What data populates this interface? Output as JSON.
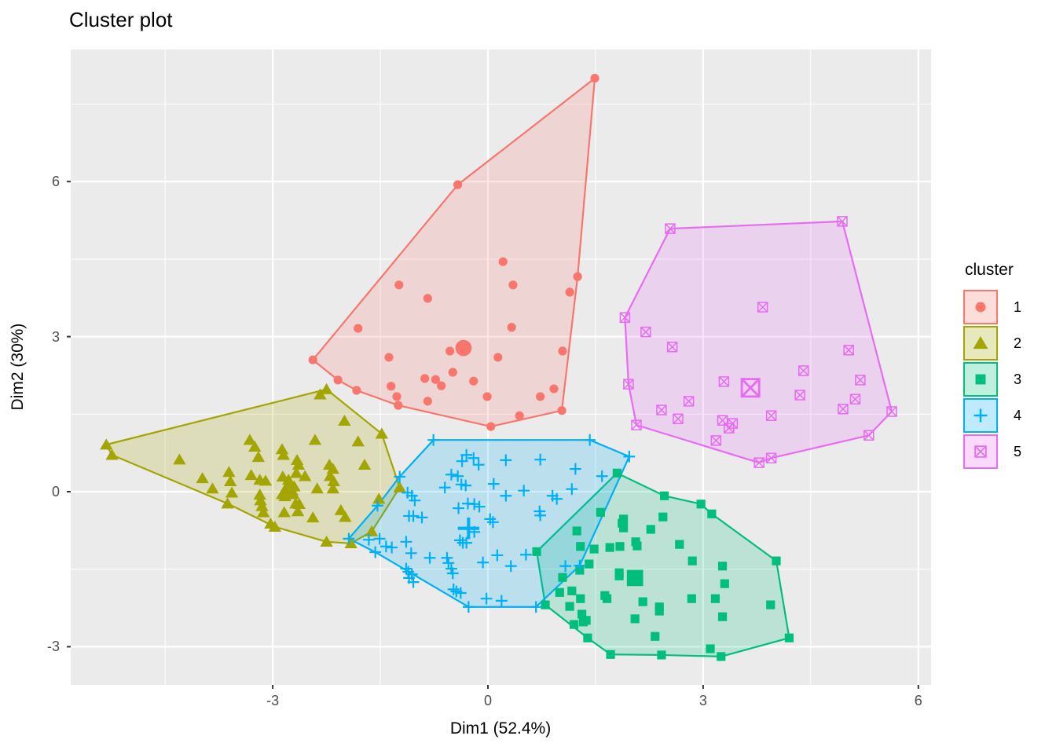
{
  "legend": {
    "title": "cluster"
  },
  "chart_data": {
    "type": "scatter",
    "title": "Cluster plot",
    "xlabel": "Dim1 (52.4%)",
    "ylabel": "Dim2 (30%)",
    "x_ticks": [
      "-3",
      "0",
      "3",
      "6"
    ],
    "x_tick_values": [
      -3,
      0,
      3,
      6
    ],
    "y_ticks": [
      "-3",
      "0",
      "3",
      "6"
    ],
    "y_tick_values": [
      -3,
      0,
      3,
      6
    ],
    "x_minor": [
      -4.5,
      -1.5,
      1.5,
      4.5
    ],
    "y_minor": [
      -1.5,
      1.5,
      4.5,
      7.5
    ],
    "xlim": [
      -5.82,
      6.18
    ],
    "ylim": [
      -3.74,
      8.56
    ],
    "panel_bg": "#EBEBEB",
    "grid_color": "#FFFFFF",
    "tick_color": "#333333",
    "legend_position": "right",
    "series": [
      {
        "name": "1",
        "shape": "circle",
        "color": "#F8766D",
        "center": [
          -0.34,
          2.78
        ],
        "hull": [
          [
            1.49,
            8.0
          ],
          [
            -0.42,
            5.94
          ],
          [
            -2.44,
            2.55
          ],
          [
            -2.09,
            2.16
          ],
          [
            -1.83,
            1.96
          ],
          [
            -1.25,
            1.67
          ],
          [
            0.04,
            1.26
          ],
          [
            1.03,
            1.57
          ],
          [
            1.25,
            4.16
          ]
        ],
        "points": [
          [
            1.49,
            8.0
          ],
          [
            -0.42,
            5.94
          ],
          [
            1.25,
            4.16
          ],
          [
            0.21,
            4.45
          ],
          [
            0.35,
            4.0
          ],
          [
            -1.24,
            4.0
          ],
          [
            -0.84,
            3.74
          ],
          [
            1.14,
            3.86
          ],
          [
            -1.81,
            3.16
          ],
          [
            0.33,
            3.18
          ],
          [
            -0.53,
            2.72
          ],
          [
            -1.38,
            2.6
          ],
          [
            0.14,
            2.6
          ],
          [
            1.04,
            2.72
          ],
          [
            -0.49,
            2.31
          ],
          [
            -0.88,
            2.19
          ],
          [
            -0.73,
            2.17
          ],
          [
            -0.65,
            2.05
          ],
          [
            -0.2,
            2.14
          ],
          [
            -1.35,
            2.04
          ],
          [
            -1.27,
            1.84
          ],
          [
            -0.84,
            1.75
          ],
          [
            -0.01,
            1.84
          ],
          [
            0.92,
            1.99
          ],
          [
            0.73,
            1.84
          ],
          [
            0.44,
            1.47
          ],
          [
            -2.44,
            2.55
          ],
          [
            -2.09,
            2.16
          ],
          [
            -1.83,
            1.96
          ],
          [
            -1.25,
            1.67
          ],
          [
            0.04,
            1.26
          ],
          [
            1.03,
            1.57
          ]
        ]
      },
      {
        "name": "2",
        "shape": "triangle",
        "color": "#A3A500",
        "center": [
          -2.79,
          0.03
        ],
        "hull": [
          [
            -5.32,
            0.91
          ],
          [
            -2.25,
            1.98
          ],
          [
            -1.48,
            1.12
          ],
          [
            -1.23,
            0.08
          ],
          [
            -1.62,
            -0.77
          ],
          [
            -1.91,
            -1.0
          ],
          [
            -2.25,
            -0.97
          ],
          [
            -2.97,
            -0.68
          ],
          [
            -3.63,
            -0.23
          ],
          [
            -5.24,
            0.71
          ]
        ],
        "points": [
          [
            -5.32,
            0.91
          ],
          [
            -5.24,
            0.71
          ],
          [
            -2.25,
            1.98
          ],
          [
            -2.34,
            1.88
          ],
          [
            -2.0,
            1.37
          ],
          [
            -1.48,
            1.12
          ],
          [
            -4.3,
            0.62
          ],
          [
            -3.98,
            0.26
          ],
          [
            -3.84,
            0.06
          ],
          [
            -3.61,
            0.38
          ],
          [
            -3.59,
            0.2
          ],
          [
            -3.57,
            -0.02
          ],
          [
            -3.63,
            -0.23
          ],
          [
            -3.32,
            1.0
          ],
          [
            -3.25,
            0.87
          ],
          [
            -3.3,
            0.32
          ],
          [
            -3.2,
            0.67
          ],
          [
            -3.18,
            0.23
          ],
          [
            -3.1,
            0.21
          ],
          [
            -3.18,
            -0.06
          ],
          [
            -3.17,
            -0.17
          ],
          [
            -3.15,
            -0.28
          ],
          [
            -3.13,
            -0.4
          ],
          [
            -3.03,
            -0.62
          ],
          [
            -2.87,
            0.82
          ],
          [
            -2.85,
            0.71
          ],
          [
            -2.86,
            0.29
          ],
          [
            -2.83,
            -0.09
          ],
          [
            -2.84,
            -0.4
          ],
          [
            -2.78,
            0.23
          ],
          [
            -2.75,
            0.15
          ],
          [
            -2.73,
            0.02
          ],
          [
            -2.7,
            0.1
          ],
          [
            -2.66,
            0.61
          ],
          [
            -2.64,
            0.52
          ],
          [
            -2.67,
            0.36
          ],
          [
            -2.68,
            -0.23
          ],
          [
            -2.63,
            -0.24
          ],
          [
            -2.65,
            -0.38
          ],
          [
            -2.55,
            0.3
          ],
          [
            -2.44,
            -0.5
          ],
          [
            -2.41,
            1.0
          ],
          [
            -2.38,
            0.06
          ],
          [
            -2.21,
            0.52
          ],
          [
            -2.16,
            0.44
          ],
          [
            -2.2,
            0.3
          ],
          [
            -2.15,
            0.2
          ],
          [
            -2.16,
            0.06
          ],
          [
            -2.05,
            -0.36
          ],
          [
            -1.99,
            -0.49
          ],
          [
            -1.81,
            0.97
          ],
          [
            -1.72,
            0.52
          ],
          [
            -1.52,
            -0.14
          ],
          [
            -1.23,
            0.08
          ],
          [
            -1.62,
            -0.77
          ],
          [
            -1.91,
            -1.0
          ],
          [
            -2.25,
            -0.97
          ],
          [
            -2.97,
            -0.68
          ]
        ]
      },
      {
        "name": "3",
        "shape": "square",
        "color": "#00BF7D",
        "center": [
          2.05,
          -1.67
        ],
        "hull": [
          [
            1.8,
            0.36
          ],
          [
            2.46,
            -0.08
          ],
          [
            2.97,
            -0.24
          ],
          [
            3.12,
            -0.43
          ],
          [
            4.02,
            -1.34
          ],
          [
            4.2,
            -2.83
          ],
          [
            3.25,
            -3.19
          ],
          [
            2.42,
            -3.16
          ],
          [
            1.71,
            -3.15
          ],
          [
            1.39,
            -2.83
          ],
          [
            0.8,
            -2.19
          ],
          [
            0.68,
            -1.16
          ]
        ],
        "points": [
          [
            1.8,
            0.36
          ],
          [
            2.46,
            -0.08
          ],
          [
            2.97,
            -0.24
          ],
          [
            3.12,
            -0.43
          ],
          [
            4.02,
            -1.34
          ],
          [
            4.2,
            -2.83
          ],
          [
            3.25,
            -3.19
          ],
          [
            2.42,
            -3.16
          ],
          [
            1.71,
            -3.15
          ],
          [
            1.39,
            -2.83
          ],
          [
            0.8,
            -2.19
          ],
          [
            0.68,
            -1.16
          ],
          [
            1.57,
            -0.4
          ],
          [
            1.89,
            -0.53
          ],
          [
            1.87,
            -0.61
          ],
          [
            1.89,
            -0.7
          ],
          [
            2.44,
            -0.49
          ],
          [
            2.27,
            -0.73
          ],
          [
            2.67,
            -1.02
          ],
          [
            1.24,
            -0.76
          ],
          [
            1.29,
            -1.06
          ],
          [
            1.48,
            -1.11
          ],
          [
            1.7,
            -1.08
          ],
          [
            1.84,
            -1.06
          ],
          [
            2.06,
            -0.97
          ],
          [
            2.08,
            -1.05
          ],
          [
            2.85,
            -1.34
          ],
          [
            3.27,
            -1.44
          ],
          [
            1.83,
            -1.57
          ],
          [
            1.83,
            -1.63
          ],
          [
            1.41,
            -1.4
          ],
          [
            1.28,
            -1.52
          ],
          [
            1.04,
            -1.66
          ],
          [
            1.0,
            -1.95
          ],
          [
            1.17,
            -1.92
          ],
          [
            1.29,
            -2.07
          ],
          [
            1.14,
            -2.22
          ],
          [
            1.31,
            -2.37
          ],
          [
            1.37,
            -2.49
          ],
          [
            1.33,
            -2.52
          ],
          [
            1.2,
            -2.57
          ],
          [
            1.63,
            -2.01
          ],
          [
            1.66,
            -2.07
          ],
          [
            2.16,
            -2.13
          ],
          [
            2.39,
            -2.23
          ],
          [
            2.39,
            -2.31
          ],
          [
            2.05,
            -2.46
          ],
          [
            2.84,
            -2.07
          ],
          [
            3.17,
            -2.07
          ],
          [
            3.27,
            -2.42
          ],
          [
            3.94,
            -2.19
          ],
          [
            3.3,
            -1.78
          ],
          [
            2.33,
            -2.8
          ],
          [
            3.1,
            -3.04
          ]
        ]
      },
      {
        "name": "4",
        "shape": "plus",
        "color": "#00B0F6",
        "center": [
          -0.27,
          -0.71
        ],
        "hull": [
          [
            -0.76,
            1.0
          ],
          [
            1.42,
            1.0
          ],
          [
            1.97,
            0.68
          ],
          [
            1.28,
            -1.43
          ],
          [
            0.67,
            -2.23
          ],
          [
            -0.27,
            -2.23
          ],
          [
            -1.57,
            -1.17
          ],
          [
            -1.94,
            -0.91
          ],
          [
            -1.54,
            -0.27
          ],
          [
            -1.23,
            0.29
          ]
        ],
        "points": [
          [
            -0.76,
            1.0
          ],
          [
            1.42,
            1.0
          ],
          [
            1.97,
            0.68
          ],
          [
            1.28,
            -1.43
          ],
          [
            0.67,
            -2.23
          ],
          [
            -0.27,
            -2.23
          ],
          [
            -1.57,
            -1.17
          ],
          [
            -1.94,
            -0.91
          ],
          [
            -1.54,
            -0.27
          ],
          [
            -1.23,
            0.29
          ],
          [
            -0.3,
            0.71
          ],
          [
            -0.2,
            0.65
          ],
          [
            -0.36,
            0.59
          ],
          [
            -0.13,
            0.52
          ],
          [
            0.25,
            0.61
          ],
          [
            0.73,
            0.62
          ],
          [
            1.22,
            0.44
          ],
          [
            1.59,
            0.3
          ],
          [
            -0.51,
            0.33
          ],
          [
            -0.42,
            0.3
          ],
          [
            -0.37,
            0.14
          ],
          [
            -0.31,
            0.12
          ],
          [
            -0.6,
            0.08
          ],
          [
            0.08,
            0.15
          ],
          [
            0.25,
            -0.08
          ],
          [
            0.5,
            0.02
          ],
          [
            1.17,
            0.05
          ],
          [
            -1.12,
            -0.02
          ],
          [
            -1.06,
            -0.08
          ],
          [
            -1.02,
            -0.17
          ],
          [
            0.9,
            -0.08
          ],
          [
            0.96,
            -0.14
          ],
          [
            -0.28,
            -0.23
          ],
          [
            -0.19,
            -0.24
          ],
          [
            -0.12,
            -0.29
          ],
          [
            -0.41,
            -0.32
          ],
          [
            0.72,
            -0.38
          ],
          [
            0.73,
            -0.46
          ],
          [
            -1.1,
            -0.47
          ],
          [
            -1.04,
            -0.47
          ],
          [
            -0.92,
            -0.5
          ],
          [
            0.03,
            -0.53
          ],
          [
            0.07,
            -0.59
          ],
          [
            -0.19,
            -0.78
          ],
          [
            -0.39,
            -0.94
          ],
          [
            -0.35,
            -0.99
          ],
          [
            -0.3,
            -0.99
          ],
          [
            -1.51,
            -0.91
          ],
          [
            -1.66,
            -0.93
          ],
          [
            -1.42,
            -1.06
          ],
          [
            -1.34,
            -1.08
          ],
          [
            -1.14,
            -0.97
          ],
          [
            -1.07,
            -1.19
          ],
          [
            -0.81,
            -1.28
          ],
          [
            -0.57,
            -1.28
          ],
          [
            0.13,
            -1.23
          ],
          [
            0.53,
            -1.22
          ],
          [
            0.32,
            -1.44
          ],
          [
            -0.07,
            -1.37
          ],
          [
            -0.55,
            -1.38
          ],
          [
            -0.51,
            -1.49
          ],
          [
            -0.49,
            -1.58
          ],
          [
            1.08,
            -1.44
          ],
          [
            -1.14,
            -1.49
          ],
          [
            -1.11,
            -1.55
          ],
          [
            -1.06,
            -1.6
          ],
          [
            -1.1,
            -1.67
          ],
          [
            -1.04,
            -1.75
          ],
          [
            -0.48,
            -1.89
          ],
          [
            -0.44,
            -1.93
          ],
          [
            -0.38,
            -1.96
          ],
          [
            -0.02,
            -2.07
          ],
          [
            0.19,
            -2.11
          ]
        ]
      },
      {
        "name": "5",
        "shape": "square-cross",
        "color": "#E76BF3",
        "center": [
          3.66,
          2.01
        ],
        "hull": [
          [
            2.54,
            5.09
          ],
          [
            4.94,
            5.23
          ],
          [
            5.63,
            1.55
          ],
          [
            5.31,
            1.09
          ],
          [
            3.95,
            0.65
          ],
          [
            3.78,
            0.56
          ],
          [
            2.07,
            1.29
          ],
          [
            1.96,
            2.08
          ],
          [
            1.91,
            3.37
          ]
        ],
        "points": [
          [
            2.54,
            5.09
          ],
          [
            4.94,
            5.23
          ],
          [
            5.63,
            1.55
          ],
          [
            5.31,
            1.09
          ],
          [
            3.95,
            0.65
          ],
          [
            3.78,
            0.56
          ],
          [
            2.07,
            1.29
          ],
          [
            1.96,
            2.08
          ],
          [
            1.91,
            3.37
          ],
          [
            3.83,
            3.57
          ],
          [
            2.2,
            3.09
          ],
          [
            2.57,
            2.8
          ],
          [
            5.03,
            2.74
          ],
          [
            4.4,
            2.34
          ],
          [
            3.29,
            2.13
          ],
          [
            4.35,
            1.87
          ],
          [
            5.19,
            2.16
          ],
          [
            5.12,
            1.79
          ],
          [
            4.95,
            1.6
          ],
          [
            2.8,
            1.75
          ],
          [
            2.42,
            1.58
          ],
          [
            2.65,
            1.41
          ],
          [
            3.27,
            1.38
          ],
          [
            3.41,
            1.32
          ],
          [
            3.36,
            1.23
          ],
          [
            3.95,
            1.47
          ],
          [
            3.18,
            0.99
          ]
        ]
      }
    ]
  }
}
